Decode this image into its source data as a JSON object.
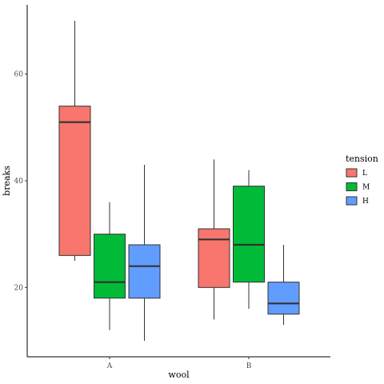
{
  "chart_data": {
    "type": "box",
    "xlabel": "wool",
    "ylabel": "breaks",
    "categories": [
      "A",
      "B"
    ],
    "ylim": [
      7,
      73
    ],
    "yticks": [
      20,
      40,
      60
    ],
    "grid": false,
    "legend": {
      "title": "tension",
      "position": "right"
    },
    "series": [
      {
        "name": "L",
        "color": "#F8766D",
        "boxes": [
          {
            "category": "A",
            "whisker_low": 25,
            "q1": 26,
            "median": 51,
            "q3": 54,
            "whisker_high": 70
          },
          {
            "category": "B",
            "whisker_low": 14,
            "q1": 20,
            "median": 29,
            "q3": 31,
            "whisker_high": 44
          }
        ]
      },
      {
        "name": "M",
        "color": "#00BA38",
        "boxes": [
          {
            "category": "A",
            "whisker_low": 12,
            "q1": 18,
            "median": 21,
            "q3": 30,
            "whisker_high": 36
          },
          {
            "category": "B",
            "whisker_low": 16,
            "q1": 21,
            "median": 28,
            "q3": 39,
            "whisker_high": 42
          }
        ]
      },
      {
        "name": "H",
        "color": "#619CFF",
        "boxes": [
          {
            "category": "A",
            "whisker_low": 10,
            "q1": 18,
            "median": 24,
            "q3": 28,
            "whisker_high": 43
          },
          {
            "category": "B",
            "whisker_low": 13,
            "q1": 15,
            "median": 17,
            "q3": 21,
            "whisker_high": 28
          }
        ]
      }
    ]
  }
}
